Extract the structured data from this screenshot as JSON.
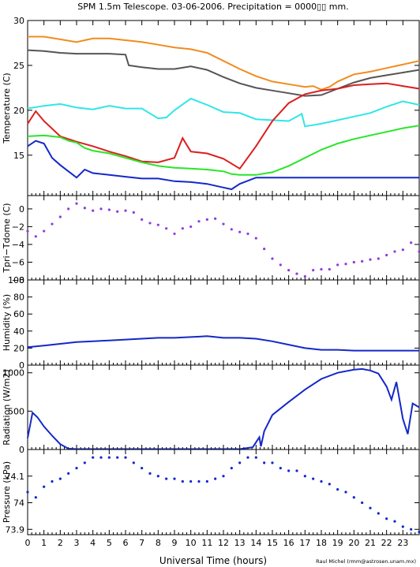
{
  "header": {
    "title": "SPM 1.5m Telescope. 03-06-2006. Precipitation = 0000▯▯ mm."
  },
  "footer": {
    "xlabel": "Universal Time (hours)",
    "credit": "Raul Michel (rmm@astrosen.unam.mx)"
  },
  "colors": {
    "orange": "#f08c1e",
    "gray": "#555555",
    "cyan": "#30e6e6",
    "red": "#dc1e1e",
    "green": "#28e628",
    "blue": "#1428c8",
    "purple": "#8c3cdc"
  },
  "chart_data": [
    {
      "type": "line",
      "ylabel": "Temperature (C)",
      "ylim": [
        10.5,
        30
      ],
      "yticks": [
        15,
        20,
        25,
        30
      ],
      "xlim": [
        0,
        24
      ],
      "series": [
        {
          "color": "#f08c1e",
          "x": [
            0,
            1,
            2,
            3,
            3.5,
            4,
            5,
            6,
            7,
            8,
            9,
            10,
            11,
            12,
            13,
            14,
            15,
            16,
            17,
            17.5,
            18,
            18.5,
            19,
            20,
            21,
            22,
            23,
            24
          ],
          "y": [
            28.2,
            28.2,
            27.9,
            27.6,
            27.8,
            28.0,
            28.0,
            27.8,
            27.6,
            27.3,
            27.0,
            26.8,
            26.4,
            25.5,
            24.6,
            23.8,
            23.2,
            22.9,
            22.6,
            22.7,
            22.3,
            22.6,
            23.2,
            24.0,
            24.3,
            24.7,
            25.1,
            25.5
          ]
        },
        {
          "color": "#555555",
          "x": [
            0,
            1,
            2,
            3,
            4,
            5,
            6,
            6.2,
            7,
            8,
            9,
            10,
            11,
            12,
            13,
            14,
            15,
            16,
            17,
            18,
            19,
            20,
            21,
            22,
            23,
            24
          ],
          "y": [
            26.7,
            26.6,
            26.4,
            26.3,
            26.3,
            26.3,
            26.2,
            25.0,
            24.8,
            24.6,
            24.6,
            24.9,
            24.5,
            23.7,
            23.0,
            22.5,
            22.2,
            21.9,
            21.6,
            21.7,
            22.4,
            23.1,
            23.6,
            23.9,
            24.2,
            24.5
          ]
        },
        {
          "color": "#30e6e6",
          "x": [
            0,
            1,
            2,
            3,
            4,
            5,
            6,
            7,
            8,
            8.5,
            9,
            10,
            11,
            12,
            13,
            14,
            15,
            16,
            16.8,
            17,
            18,
            19,
            20,
            21,
            22,
            23,
            24
          ],
          "y": [
            20.2,
            20.5,
            20.7,
            20.3,
            20.1,
            20.5,
            20.2,
            20.2,
            19.1,
            19.2,
            20.0,
            21.3,
            20.6,
            19.8,
            19.7,
            19.0,
            18.9,
            18.8,
            19.6,
            18.2,
            18.5,
            18.9,
            19.3,
            19.7,
            20.4,
            21.0,
            20.6
          ]
        },
        {
          "color": "#dc1e1e",
          "x": [
            0,
            0.5,
            1,
            2,
            3,
            4,
            5,
            6,
            7,
            8,
            9,
            9.5,
            10,
            11,
            12,
            13,
            14,
            15,
            16,
            17,
            18,
            19,
            20,
            21,
            22,
            23,
            24
          ],
          "y": [
            18.5,
            19.9,
            18.8,
            17.1,
            16.5,
            16.0,
            15.4,
            14.9,
            14.3,
            14.2,
            14.7,
            16.9,
            15.4,
            15.2,
            14.6,
            13.5,
            16.0,
            18.8,
            20.8,
            21.8,
            22.2,
            22.4,
            22.8,
            22.9,
            23.0,
            22.7,
            22.4
          ]
        },
        {
          "color": "#28e628",
          "x": [
            0,
            1,
            2,
            2.5,
            3,
            3.5,
            4,
            5,
            6,
            7,
            8,
            9,
            10,
            11,
            12,
            12.5,
            13,
            14,
            15,
            16,
            17,
            18,
            19,
            20,
            21,
            22,
            23,
            24
          ],
          "y": [
            17.1,
            17.2,
            17.0,
            16.6,
            16.4,
            15.8,
            15.5,
            15.2,
            14.7,
            14.2,
            13.8,
            13.6,
            13.5,
            13.4,
            13.2,
            12.9,
            12.8,
            12.8,
            13.1,
            13.8,
            14.7,
            15.6,
            16.3,
            16.8,
            17.2,
            17.6,
            18.0,
            18.3
          ]
        },
        {
          "color": "#1428c8",
          "x": [
            0,
            0.5,
            1,
            1.5,
            2,
            2.5,
            3,
            3.5,
            4,
            5,
            6,
            7,
            8,
            9,
            10,
            11,
            12,
            12.5,
            13,
            14,
            14.5,
            15,
            16,
            17,
            18,
            19,
            20,
            21,
            22,
            23,
            24
          ],
          "y": [
            16.0,
            16.6,
            16.3,
            14.7,
            13.9,
            13.2,
            12.5,
            13.4,
            13.0,
            12.8,
            12.6,
            12.4,
            12.4,
            12.1,
            12.0,
            11.8,
            11.4,
            11.2,
            11.8,
            12.5,
            12.5,
            12.5,
            12.5,
            12.5,
            12.5,
            12.5,
            12.5,
            12.5,
            12.5,
            12.5,
            12.5
          ]
        }
      ]
    },
    {
      "type": "scatter",
      "ylabel": "Tpri−Tdome (C)",
      "ylim": [
        -8,
        1.5
      ],
      "yticks": [
        0,
        -2,
        -4,
        -6,
        -8
      ],
      "yticklabels": [
        "0",
        "−2",
        "−4",
        "−6",
        "−8"
      ],
      "xlim": [
        0,
        24
      ],
      "series": [
        {
          "color": "#8c3cdc",
          "x": [
            0,
            0.5,
            1,
            1.5,
            2,
            2.5,
            3,
            3.5,
            4,
            4.5,
            5,
            5.5,
            6,
            6.5,
            7,
            7.5,
            8,
            8.5,
            9,
            9.5,
            10,
            10.5,
            11,
            11.5,
            12,
            12.5,
            13,
            13.5,
            14,
            14.5,
            15,
            15.5,
            16,
            16.5,
            17,
            17.5,
            18,
            18.5,
            19,
            19.5,
            20,
            20.5,
            21,
            21.5,
            22,
            22.5,
            23,
            23.5,
            24
          ],
          "y": [
            -2.5,
            -3.1,
            -2.5,
            -1.7,
            -0.9,
            0.0,
            0.6,
            0.1,
            -0.2,
            0.0,
            -0.1,
            -0.3,
            -0.2,
            -0.4,
            -1.2,
            -1.6,
            -1.8,
            -2.2,
            -2.8,
            -2.2,
            -2.0,
            -1.4,
            -1.2,
            -1.1,
            -1.7,
            -2.3,
            -2.6,
            -2.8,
            -3.3,
            -4.5,
            -5.6,
            -6.3,
            -6.9,
            -7.3,
            -7.6,
            -6.9,
            -6.8,
            -6.8,
            -6.3,
            -6.2,
            -6.0,
            -5.9,
            -5.7,
            -5.6,
            -5.2,
            -4.8,
            -4.6,
            -3.8,
            -4.8
          ]
        }
      ]
    },
    {
      "type": "line",
      "ylabel": "Humidity (%)",
      "ylim": [
        0,
        100
      ],
      "yticks": [
        0,
        20,
        40,
        60,
        80,
        100
      ],
      "xlim": [
        0,
        24
      ],
      "series": [
        {
          "color": "#1428c8",
          "x": [
            0,
            1,
            2,
            3,
            4,
            5,
            6,
            7,
            8,
            9,
            10,
            11,
            12,
            13,
            14,
            15,
            16,
            17,
            18,
            19,
            20,
            21,
            22,
            23,
            24
          ],
          "y": [
            21,
            23,
            25,
            27,
            28,
            29,
            30,
            31,
            32,
            32,
            33,
            34,
            32,
            32,
            31,
            28,
            24,
            20,
            18,
            18,
            17,
            17,
            17,
            17,
            17
          ]
        }
      ]
    },
    {
      "type": "line",
      "ylabel": "Radiation (W/m2)",
      "ylim": [
        0,
        1100
      ],
      "yticks": [
        0,
        500,
        1000
      ],
      "xlim": [
        0,
        24
      ],
      "series": [
        {
          "color": "#1428c8",
          "x": [
            0,
            0.3,
            0.6,
            1,
            1.5,
            2,
            2.5,
            3,
            4,
            5,
            6,
            7,
            8,
            9,
            10,
            11,
            12,
            13,
            13.8,
            14.2,
            14.3,
            14.5,
            15,
            16,
            17,
            18,
            19,
            20,
            20.5,
            21,
            21.5,
            22,
            22.3,
            22.6,
            23,
            23.3,
            23.6,
            24
          ],
          "y": [
            150,
            480,
            420,
            300,
            180,
            70,
            10,
            5,
            5,
            5,
            5,
            5,
            5,
            5,
            5,
            5,
            5,
            5,
            30,
            160,
            40,
            240,
            450,
            620,
            780,
            920,
            1000,
            1040,
            1050,
            1030,
            990,
            820,
            650,
            880,
            400,
            200,
            600,
            550
          ]
        }
      ]
    },
    {
      "type": "scatter",
      "ylabel": "Pressure (kPa)",
      "ylim": [
        73.88,
        74.2
      ],
      "yticks": [
        73.9,
        74.0,
        74.1
      ],
      "yticklabels": [
        "73.9",
        "74",
        "74.1"
      ],
      "xlim": [
        0,
        24
      ],
      "series": [
        {
          "color": "#1428c8",
          "x": [
            0,
            0.5,
            1,
            1.5,
            2,
            2.5,
            3,
            3.5,
            4,
            4.5,
            5,
            5.5,
            6,
            6.5,
            7,
            7.5,
            8,
            8.5,
            9,
            9.5,
            10,
            10.5,
            11,
            11.5,
            12,
            12.5,
            13,
            13.5,
            14,
            14.5,
            15,
            15.5,
            16,
            16.5,
            17,
            17.5,
            18,
            18.5,
            19,
            19.5,
            20,
            20.5,
            21,
            21.5,
            22,
            22.5,
            23,
            23.5,
            24
          ],
          "y": [
            74.04,
            74.02,
            74.06,
            74.08,
            74.09,
            74.11,
            74.13,
            74.15,
            74.17,
            74.17,
            74.17,
            74.17,
            74.17,
            74.15,
            74.13,
            74.11,
            74.1,
            74.09,
            74.09,
            74.08,
            74.08,
            74.08,
            74.08,
            74.09,
            74.1,
            74.13,
            74.15,
            74.17,
            74.17,
            74.15,
            74.15,
            74.13,
            74.12,
            74.12,
            74.1,
            74.09,
            74.08,
            74.07,
            74.05,
            74.04,
            74.02,
            74.0,
            73.98,
            73.96,
            73.94,
            73.93,
            73.91,
            73.9,
            73.89
          ]
        }
      ]
    }
  ],
  "xaxis": {
    "ticks": [
      0,
      1,
      2,
      3,
      4,
      5,
      6,
      7,
      8,
      9,
      10,
      11,
      12,
      13,
      14,
      15,
      16,
      17,
      18,
      19,
      20,
      21,
      22,
      23
    ]
  }
}
